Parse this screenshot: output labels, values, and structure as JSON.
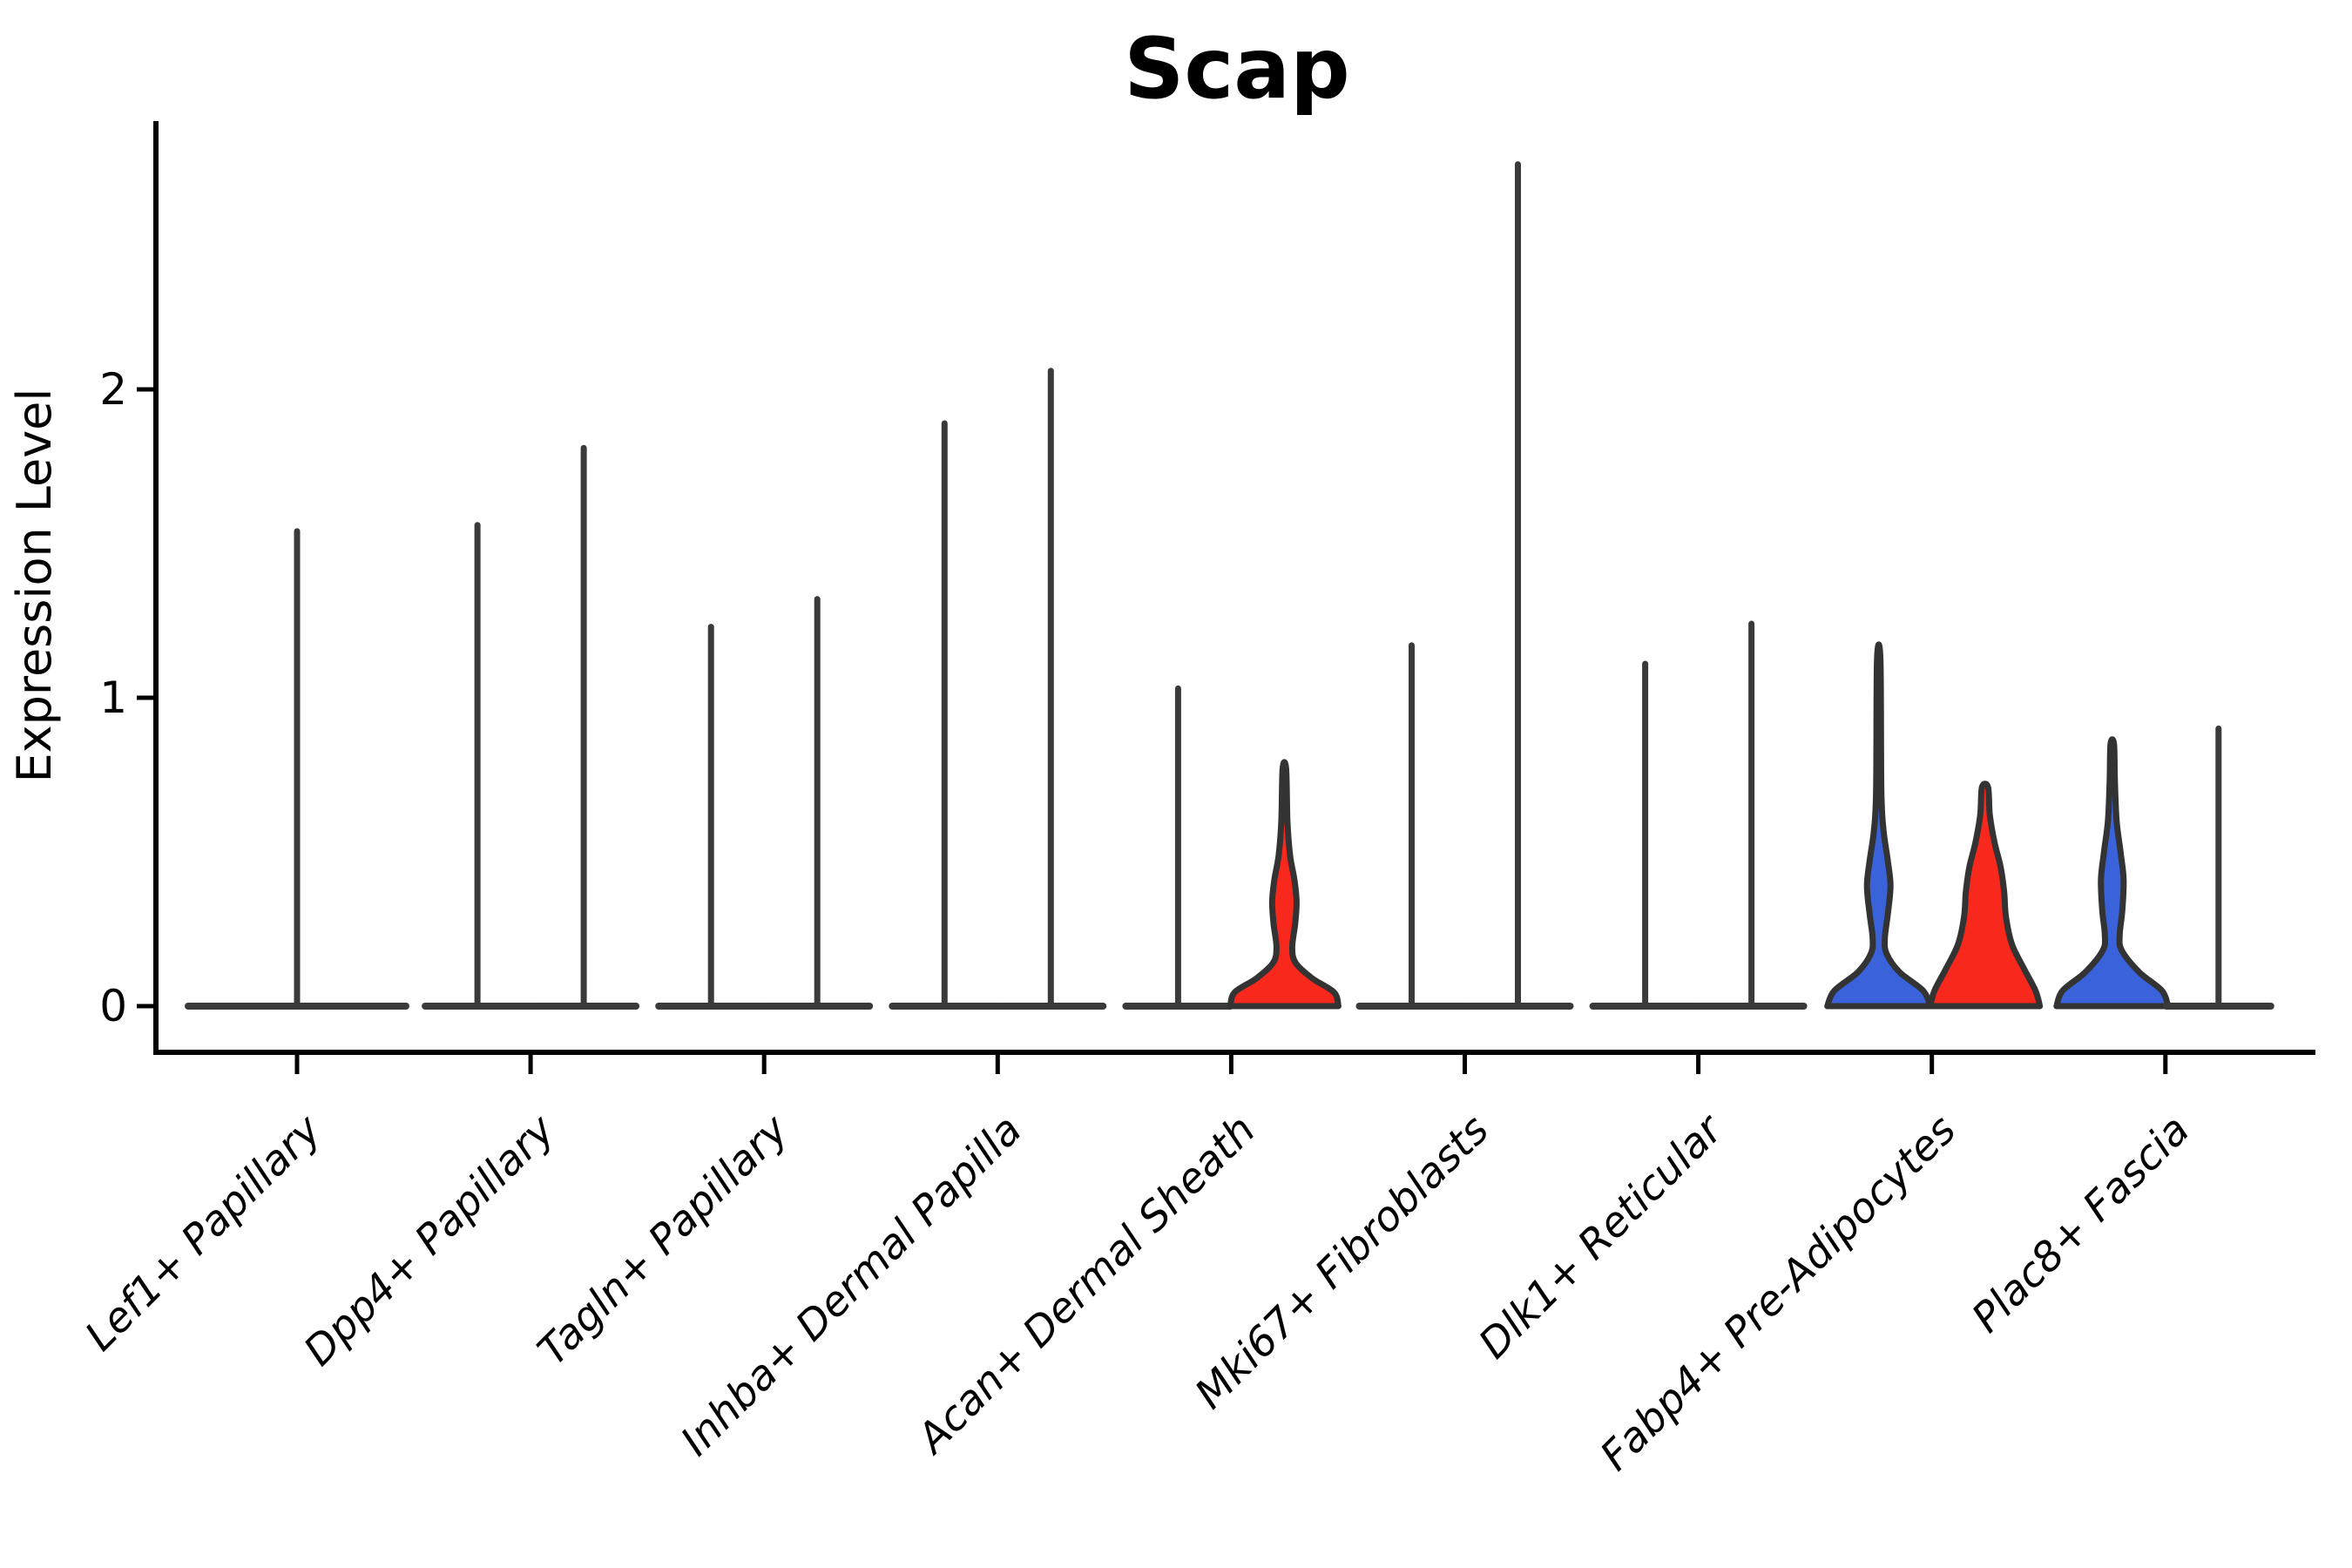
{
  "chart_data": {
    "type": "violin",
    "title": "Scap",
    "ylabel": "Expression Level",
    "xlabel": "",
    "yticks": [
      0,
      1,
      2
    ],
    "ylim": [
      0,
      2.9
    ],
    "grid": false,
    "legend": null,
    "palette": {
      "red": "#F8281D",
      "blue": "#3A63DB",
      "violin_outline": "#333333",
      "flat_line": "#3a3a3a",
      "axis": "#000000"
    },
    "categories": [
      "Lef1+ Papillary",
      "Dpp4+ Papillary",
      "Tagln+ Papillary",
      "Inhba+ Dermal Papilla",
      "Acan+ Dermal Sheath",
      "Mki67+ Fibroblasts",
      "Dlk1+ Reticular",
      "Fabp4+ Pre-Adipocytes",
      "Plac8+ Fascia"
    ],
    "groups": [
      {
        "category": "Lef1+ Papillary",
        "violins": [
          {
            "split": "full",
            "fill": "white",
            "max": 1.54
          }
        ]
      },
      {
        "category": "Dpp4+ Papillary",
        "violins": [
          {
            "split": "left",
            "fill": "white",
            "max": 1.56
          },
          {
            "split": "right",
            "fill": "white",
            "max": 1.81
          }
        ]
      },
      {
        "category": "Tagln+ Papillary",
        "violins": [
          {
            "split": "left",
            "fill": "white",
            "max": 1.23
          },
          {
            "split": "right",
            "fill": "white",
            "max": 1.32
          }
        ]
      },
      {
        "category": "Inhba+ Dermal Papilla",
        "violins": [
          {
            "split": "left",
            "fill": "white",
            "max": 1.89
          },
          {
            "split": "right",
            "fill": "white",
            "max": 2.06
          }
        ]
      },
      {
        "category": "Acan+ Dermal Sheath",
        "violins": [
          {
            "split": "left",
            "fill": "white",
            "max": 1.03
          },
          {
            "split": "right",
            "fill": "red",
            "max": 0.77,
            "profile": [
              [
                0,
                62
              ],
              [
                0.045,
                57
              ],
              [
                0.09,
                32
              ],
              [
                0.14,
                13
              ],
              [
                0.19,
                9
              ],
              [
                0.27,
                12.5
              ],
              [
                0.34,
                14
              ],
              [
                0.41,
                11.5
              ],
              [
                0.49,
                6.5
              ],
              [
                0.6,
                3.5
              ],
              [
                0.77,
                2
              ]
            ]
          }
        ]
      },
      {
        "category": "Mki67+ Fibroblasts",
        "violins": [
          {
            "split": "left",
            "fill": "white",
            "max": 1.17
          },
          {
            "split": "right",
            "fill": "white",
            "max": 2.73
          }
        ]
      },
      {
        "category": "Dlk1+ Reticular",
        "violins": [
          {
            "split": "left",
            "fill": "white",
            "max": 1.11
          },
          {
            "split": "right",
            "fill": "white",
            "max": 1.24
          }
        ]
      },
      {
        "category": "Fabp4+ Pre-Adipocytes",
        "violins": [
          {
            "split": "left",
            "fill": "blue",
            "max": 1.12,
            "profile": [
              [
                0,
                59
              ],
              [
                0.05,
                51
              ],
              [
                0.11,
                24
              ],
              [
                0.17,
                9
              ],
              [
                0.22,
                7
              ],
              [
                0.3,
                10.5
              ],
              [
                0.39,
                13.5
              ],
              [
                0.47,
                10.5
              ],
              [
                0.57,
                5.5
              ],
              [
                0.7,
                3
              ],
              [
                1.12,
                2
              ]
            ]
          },
          {
            "split": "right",
            "fill": "red",
            "max": 0.71,
            "profile": [
              [
                0,
                63
              ],
              [
                0.05,
                58
              ],
              [
                0.12,
                45
              ],
              [
                0.2,
                31
              ],
              [
                0.29,
                24
              ],
              [
                0.37,
                22
              ],
              [
                0.45,
                18
              ],
              [
                0.53,
                11
              ],
              [
                0.62,
                5.5
              ],
              [
                0.71,
                3.5
              ]
            ]
          }
        ]
      },
      {
        "category": "Plac8+ Fascia",
        "violins": [
          {
            "split": "left",
            "fill": "blue",
            "max": 0.85,
            "profile": [
              [
                0,
                64
              ],
              [
                0.05,
                57
              ],
              [
                0.11,
                31
              ],
              [
                0.18,
                11
              ],
              [
                0.23,
                8.5
              ],
              [
                0.31,
                11.5
              ],
              [
                0.41,
                13
              ],
              [
                0.5,
                9.5
              ],
              [
                0.6,
                5
              ],
              [
                0.73,
                3
              ],
              [
                0.85,
                2
              ]
            ]
          },
          {
            "split": "right",
            "fill": "white",
            "max": 0.9
          }
        ]
      }
    ]
  }
}
